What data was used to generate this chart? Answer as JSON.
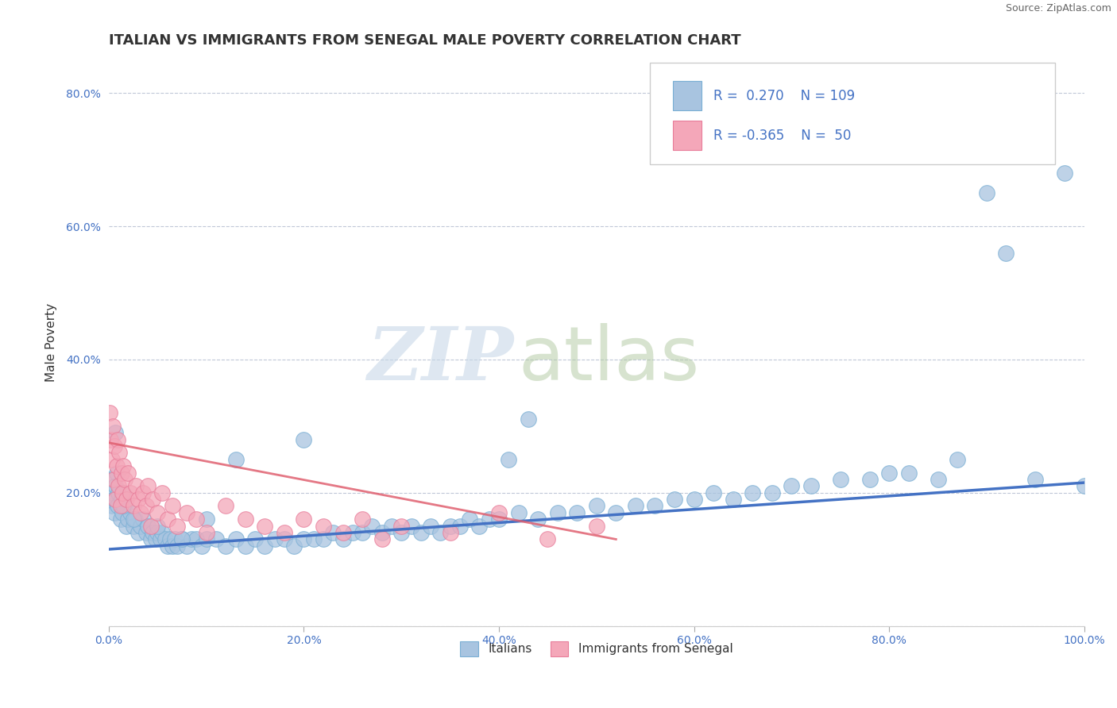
{
  "title": "ITALIAN VS IMMIGRANTS FROM SENEGAL MALE POVERTY CORRELATION CHART",
  "source": "Source: ZipAtlas.com",
  "ylabel": "Male Poverty",
  "xlim": [
    0.0,
    1.0
  ],
  "ylim": [
    0.0,
    0.85
  ],
  "xticks": [
    0.0,
    0.2,
    0.4,
    0.6,
    0.8,
    1.0
  ],
  "xticklabels": [
    "0.0%",
    "20.0%",
    "40.0%",
    "60.0%",
    "80.0%",
    "100.0%"
  ],
  "yticks": [
    0.0,
    0.2,
    0.4,
    0.6,
    0.8
  ],
  "yticklabels": [
    "",
    "20.0%",
    "40.0%",
    "60.0%",
    "80.0%"
  ],
  "blue_color": "#a8c4e0",
  "blue_edge": "#7aafd4",
  "pink_color": "#f4a7b9",
  "pink_edge": "#e87d9a",
  "trend_blue": "#4472c4",
  "trend_pink": "#e06070",
  "legend_R1": "0.270",
  "legend_N1": "109",
  "legend_R2": "-0.365",
  "legend_N2": "50",
  "watermark_top": "ZIP",
  "watermark_bot": "atlas",
  "watermark_color_top": "#c8d8e8",
  "watermark_color_bot": "#b0c8a0",
  "title_fontsize": 13,
  "axis_label_fontsize": 11,
  "tick_fontsize": 10,
  "legend_fontsize": 12,
  "italians_x": [
    0.002,
    0.003,
    0.004,
    0.005,
    0.006,
    0.007,
    0.008,
    0.009,
    0.01,
    0.012,
    0.013,
    0.014,
    0.015,
    0.016,
    0.018,
    0.02,
    0.022,
    0.025,
    0.027,
    0.03,
    0.033,
    0.035,
    0.038,
    0.04,
    0.043,
    0.045,
    0.048,
    0.05,
    0.053,
    0.055,
    0.058,
    0.06,
    0.063,
    0.065,
    0.068,
    0.07,
    0.075,
    0.08,
    0.085,
    0.09,
    0.095,
    0.1,
    0.11,
    0.12,
    0.13,
    0.14,
    0.15,
    0.16,
    0.17,
    0.18,
    0.19,
    0.2,
    0.21,
    0.22,
    0.23,
    0.24,
    0.25,
    0.26,
    0.27,
    0.28,
    0.29,
    0.3,
    0.31,
    0.32,
    0.33,
    0.34,
    0.35,
    0.36,
    0.37,
    0.38,
    0.39,
    0.4,
    0.42,
    0.44,
    0.46,
    0.48,
    0.5,
    0.52,
    0.54,
    0.56,
    0.58,
    0.6,
    0.62,
    0.64,
    0.66,
    0.68,
    0.7,
    0.72,
    0.75,
    0.78,
    0.8,
    0.82,
    0.85,
    0.87,
    0.9,
    0.92,
    0.95,
    0.98,
    1.0,
    0.43,
    0.41,
    0.007,
    0.015,
    0.025,
    0.05,
    0.075,
    0.1,
    0.13,
    0.2
  ],
  "italians_y": [
    0.22,
    0.18,
    0.2,
    0.19,
    0.17,
    0.21,
    0.23,
    0.18,
    0.2,
    0.16,
    0.19,
    0.17,
    0.2,
    0.18,
    0.15,
    0.16,
    0.17,
    0.15,
    0.16,
    0.14,
    0.15,
    0.16,
    0.14,
    0.15,
    0.13,
    0.14,
    0.13,
    0.14,
    0.13,
    0.14,
    0.13,
    0.12,
    0.13,
    0.12,
    0.13,
    0.12,
    0.13,
    0.12,
    0.13,
    0.13,
    0.12,
    0.13,
    0.13,
    0.12,
    0.13,
    0.12,
    0.13,
    0.12,
    0.13,
    0.13,
    0.12,
    0.13,
    0.13,
    0.13,
    0.14,
    0.13,
    0.14,
    0.14,
    0.15,
    0.14,
    0.15,
    0.14,
    0.15,
    0.14,
    0.15,
    0.14,
    0.15,
    0.15,
    0.16,
    0.15,
    0.16,
    0.16,
    0.17,
    0.16,
    0.17,
    0.17,
    0.18,
    0.17,
    0.18,
    0.18,
    0.19,
    0.19,
    0.2,
    0.19,
    0.2,
    0.2,
    0.21,
    0.21,
    0.22,
    0.22,
    0.23,
    0.23,
    0.22,
    0.25,
    0.65,
    0.56,
    0.22,
    0.68,
    0.21,
    0.31,
    0.25,
    0.29,
    0.18,
    0.16,
    0.15,
    0.13,
    0.16,
    0.25,
    0.28
  ],
  "senegal_x": [
    0.001,
    0.002,
    0.003,
    0.004,
    0.005,
    0.006,
    0.007,
    0.008,
    0.009,
    0.01,
    0.011,
    0.012,
    0.013,
    0.014,
    0.015,
    0.016,
    0.018,
    0.02,
    0.022,
    0.025,
    0.028,
    0.03,
    0.033,
    0.035,
    0.038,
    0.04,
    0.043,
    0.045,
    0.05,
    0.055,
    0.06,
    0.065,
    0.07,
    0.08,
    0.09,
    0.1,
    0.12,
    0.14,
    0.16,
    0.18,
    0.2,
    0.22,
    0.24,
    0.26,
    0.28,
    0.3,
    0.35,
    0.4,
    0.45,
    0.5
  ],
  "senegal_y": [
    0.32,
    0.28,
    0.25,
    0.3,
    0.22,
    0.27,
    0.19,
    0.24,
    0.28,
    0.21,
    0.26,
    0.18,
    0.23,
    0.2,
    0.24,
    0.22,
    0.19,
    0.23,
    0.2,
    0.18,
    0.21,
    0.19,
    0.17,
    0.2,
    0.18,
    0.21,
    0.15,
    0.19,
    0.17,
    0.2,
    0.16,
    0.18,
    0.15,
    0.17,
    0.16,
    0.14,
    0.18,
    0.16,
    0.15,
    0.14,
    0.16,
    0.15,
    0.14,
    0.16,
    0.13,
    0.15,
    0.14,
    0.17,
    0.13,
    0.15
  ],
  "blue_trend_x": [
    0.0,
    1.0
  ],
  "blue_trend_y": [
    0.115,
    0.215
  ],
  "pink_trend_x": [
    0.0,
    0.52
  ],
  "pink_trend_y": [
    0.275,
    0.13
  ]
}
